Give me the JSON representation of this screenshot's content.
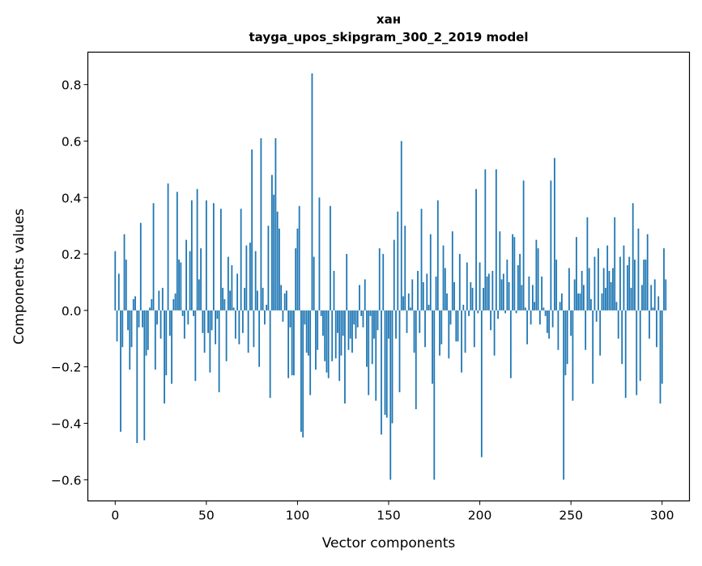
{
  "chart_data": {
    "type": "bar",
    "title": "хан",
    "subtitle": "tayga_upos_skipgram_300_2_2019 model",
    "xlabel": "Vector components",
    "ylabel": "Components values",
    "xlim": [
      -15,
      315
    ],
    "ylim": [
      -0.675,
      0.915
    ],
    "xticks": [
      0,
      50,
      100,
      150,
      200,
      250,
      300
    ],
    "xtick_labels": [
      "0",
      "50",
      "100",
      "150",
      "200",
      "250",
      "300"
    ],
    "yticks": [
      0.8,
      0.6,
      0.4,
      0.2,
      0.0,
      -0.2,
      -0.4,
      -0.6
    ],
    "ytick_labels": [
      "0.8",
      "0.6",
      "0.4",
      "0.2",
      "0.0",
      "−0.2",
      "−0.4",
      "−0.6"
    ],
    "grid": false,
    "bar_color": "#1f77b4",
    "values": [
      0.21,
      -0.11,
      0.13,
      -0.43,
      -0.13,
      0.27,
      0.18,
      -0.07,
      -0.21,
      -0.13,
      0.04,
      0.05,
      -0.47,
      -0.06,
      0.31,
      -0.06,
      -0.46,
      -0.16,
      -0.14,
      0.01,
      0.04,
      0.38,
      -0.21,
      -0.05,
      0.07,
      -0.1,
      0.08,
      -0.33,
      -0.23,
      0.45,
      -0.09,
      -0.26,
      0.04,
      0.06,
      0.42,
      0.18,
      0.17,
      -0.02,
      -0.1,
      0.25,
      -0.05,
      0.21,
      0.39,
      -0.02,
      -0.25,
      0.43,
      0.11,
      0.22,
      -0.08,
      -0.15,
      0.39,
      -0.08,
      -0.22,
      -0.07,
      0.38,
      -0.12,
      -0.03,
      -0.29,
      0.36,
      0.08,
      0.04,
      -0.18,
      0.19,
      0.07,
      0.16,
      0.01,
      -0.1,
      0.13,
      -0.12,
      0.36,
      -0.08,
      0.08,
      0.23,
      -0.15,
      0.24,
      0.57,
      -0.13,
      0.21,
      0.07,
      -0.2,
      0.61,
      0.08,
      -0.05,
      0.02,
      0.3,
      -0.31,
      0.48,
      0.41,
      0.61,
      0.35,
      0.29,
      0.09,
      -0.04,
      0.06,
      0.07,
      -0.24,
      -0.06,
      -0.23,
      -0.23,
      0.22,
      0.29,
      0.37,
      -0.43,
      -0.45,
      -0.05,
      -0.15,
      -0.16,
      -0.3,
      0.84,
      0.19,
      -0.21,
      -0.14,
      0.4,
      -0.02,
      -0.09,
      -0.18,
      -0.22,
      -0.24,
      0.37,
      -0.18,
      0.14,
      -0.17,
      -0.08,
      -0.25,
      -0.16,
      -0.09,
      -0.33,
      0.2,
      -0.14,
      -0.1,
      -0.15,
      -0.05,
      -0.1,
      -0.06,
      0.09,
      -0.02,
      -0.06,
      0.11,
      -0.2,
      -0.3,
      -0.02,
      -0.19,
      -0.1,
      -0.32,
      -0.07,
      0.22,
      -0.44,
      0.2,
      -0.37,
      -0.38,
      -0.1,
      -0.6,
      -0.4,
      0.25,
      -0.1,
      0.35,
      -0.29,
      0.6,
      0.05,
      0.3,
      -0.08,
      0.06,
      0.01,
      0.11,
      -0.15,
      -0.35,
      0.14,
      -0.08,
      0.36,
      0.1,
      -0.13,
      0.13,
      0.02,
      0.27,
      -0.26,
      -0.6,
      0.12,
      0.39,
      -0.16,
      -0.12,
      0.23,
      0.15,
      0.06,
      -0.17,
      -0.05,
      0.28,
      0.1,
      -0.11,
      -0.11,
      0.2,
      -0.22,
      0.02,
      -0.15,
      0.17,
      -0.02,
      0.1,
      0.08,
      -0.13,
      0.43,
      -0.01,
      0.17,
      -0.52,
      0.08,
      0.5,
      0.12,
      0.13,
      -0.07,
      0.14,
      -0.16,
      0.5,
      -0.03,
      0.28,
      0.11,
      0.13,
      -0.01,
      0.18,
      0.1,
      -0.24,
      0.27,
      0.26,
      -0.01,
      0.16,
      0.2,
      0.09,
      0.46,
      0.01,
      -0.12,
      0.12,
      -0.05,
      0.09,
      0.03,
      0.25,
      0.22,
      -0.05,
      0.12,
      0.01,
      -0.02,
      -0.08,
      -0.1,
      0.46,
      -0.06,
      0.54,
      0.18,
      -0.14,
      0.03,
      0.06,
      -0.6,
      -0.23,
      -0.19,
      0.15,
      -0.09,
      -0.32,
      0.11,
      0.26,
      0.06,
      0.06,
      0.14,
      0.09,
      -0.14,
      0.33,
      0.15,
      0.04,
      -0.26,
      0.19,
      -0.04,
      0.22,
      -0.16,
      0.06,
      0.15,
      0.08,
      0.23,
      0.14,
      0.1,
      0.15,
      0.33,
      0.03,
      -0.1,
      0.19,
      -0.19,
      0.23,
      -0.31,
      0.16,
      0.19,
      0.08,
      0.38,
      0.18,
      -0.3,
      0.29,
      -0.25,
      0.09,
      0.18,
      0.18,
      0.27,
      -0.1,
      0.09,
      0.01,
      0.11,
      -0.13,
      0.05,
      -0.33,
      -0.26,
      0.22,
      0.11
    ]
  }
}
